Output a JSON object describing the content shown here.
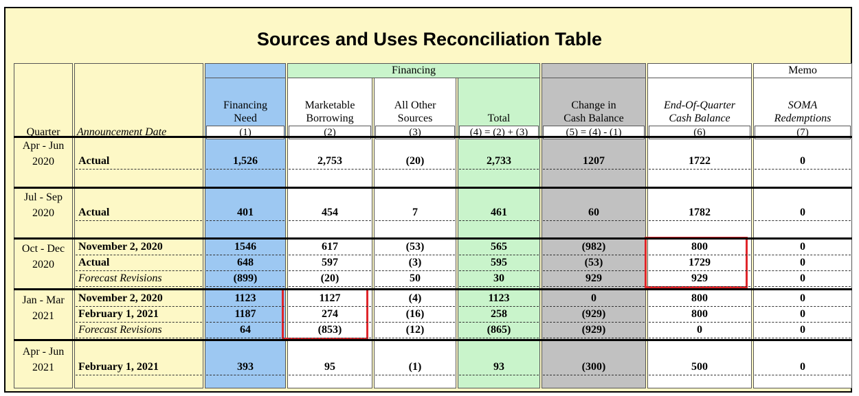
{
  "title": "Sources and Uses Reconciliation Table",
  "bands": {
    "financing": "Financing",
    "memo": "Memo"
  },
  "headers": {
    "quarter": "Quarter",
    "announcement_date": "Announcement Date",
    "fn1": "Financing",
    "fn2": "Need",
    "fn_num": "(1)",
    "mb1": "Marketable",
    "mb2": "Borrowing",
    "mb_num": "(2)",
    "ao1": "All Other",
    "ao2": "Sources",
    "ao_num": "(3)",
    "tot1": "Total",
    "tot_num": "(4) = (2) + (3)",
    "chg1": "Change in",
    "chg2": "Cash Balance",
    "chg_num": "(5) = (4) - (1)",
    "eoq1": "End-Of-Quarter",
    "eoq2": "Cash Balance",
    "eoq_num": "(6)",
    "soma1": "SOMA",
    "soma2": "Redemptions",
    "soma_num": "(7)"
  },
  "groups": [
    {
      "q1": "Apr - Jun",
      "q2": "2020",
      "rows": [
        {
          "label": "Actual",
          "italic": false,
          "values": [
            "1,526",
            "2,753",
            "(20)",
            "2,733",
            "1207",
            "1722",
            "0"
          ]
        }
      ]
    },
    {
      "q1": "Jul - Sep",
      "q2": "2020",
      "rows": [
        {
          "label": "Actual",
          "italic": false,
          "values": [
            "401",
            "454",
            "7",
            "461",
            "60",
            "1782",
            "0"
          ]
        }
      ]
    },
    {
      "q1": "Oct - Dec",
      "q2": "2020",
      "rows": [
        {
          "label": "November 2, 2020",
          "italic": false,
          "values": [
            "1546",
            "617",
            "(53)",
            "565",
            "(982)",
            "800",
            "0"
          ]
        },
        {
          "label": "Actual",
          "italic": false,
          "values": [
            "648",
            "597",
            "(3)",
            "595",
            "(53)",
            "1729",
            "0"
          ]
        },
        {
          "label": "Forecast Revisions",
          "italic": true,
          "values": [
            "(899)",
            "(20)",
            "50",
            "30",
            "929",
            "929",
            "0"
          ]
        }
      ]
    },
    {
      "q1": "Jan - Mar",
      "q2": "2021",
      "rows": [
        {
          "label": "November 2, 2020",
          "italic": false,
          "values": [
            "1123",
            "1127",
            "(4)",
            "1123",
            "0",
            "800",
            "0"
          ]
        },
        {
          "label": "February 1, 2021",
          "italic": false,
          "values": [
            "1187",
            "274",
            "(16)",
            "258",
            "(929)",
            "800",
            "0"
          ]
        },
        {
          "label": "Forecast Revisions",
          "italic": true,
          "values": [
            "64",
            "(853)",
            "(12)",
            "(865)",
            "(929)",
            "0",
            "0"
          ]
        }
      ]
    },
    {
      "q1": "Apr - Jun",
      "q2": "2021",
      "rows": [
        {
          "label": "February 1, 2021",
          "italic": false,
          "values": [
            "393",
            "95",
            "(1)",
            "93",
            "(300)",
            "500",
            "0"
          ]
        }
      ]
    }
  ],
  "highlight_color": "#e0262b",
  "column_colors": {
    "financing_need": "#9dc8f2",
    "financing": "#c9f4cb",
    "cash_change": "#c1c1c1",
    "header_bg": "#fdf8c6"
  }
}
